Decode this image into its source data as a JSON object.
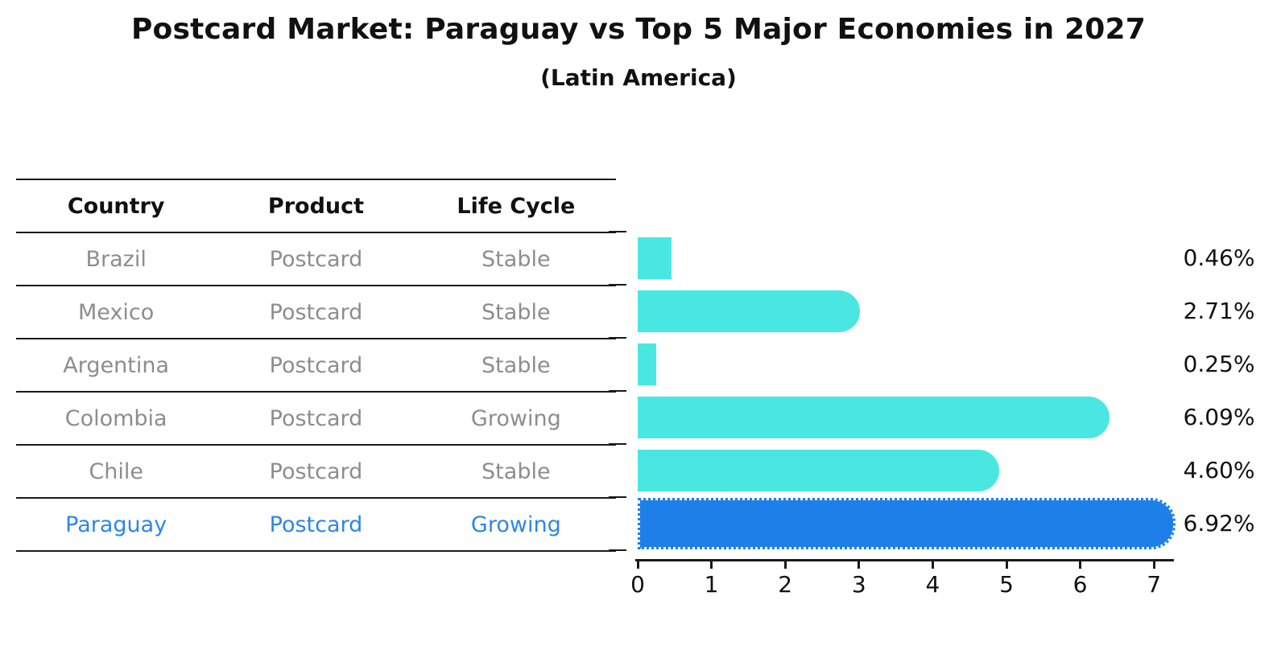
{
  "title": "Postcard Market: Paraguay vs Top 5 Major Economies in 2027",
  "subtitle": "(Latin America)",
  "table": {
    "headers": [
      "Country",
      "Product",
      "Life Cycle"
    ],
    "rows": [
      {
        "country": "Brazil",
        "product": "Postcard",
        "life_cycle": "Stable",
        "highlight": false
      },
      {
        "country": "Mexico",
        "product": "Postcard",
        "life_cycle": "Stable",
        "highlight": false
      },
      {
        "country": "Argentina",
        "product": "Postcard",
        "life_cycle": "Stable",
        "highlight": false
      },
      {
        "country": "Colombia",
        "product": "Postcard",
        "life_cycle": "Growing",
        "highlight": false
      },
      {
        "country": "Chile",
        "product": "Postcard",
        "life_cycle": "Stable",
        "highlight": false
      },
      {
        "country": "Paraguay",
        "product": "Postcard",
        "life_cycle": "Growing",
        "highlight": true
      }
    ]
  },
  "chart_data": {
    "type": "bar",
    "orientation": "horizontal",
    "title": "Postcard Market: Paraguay vs Top 5 Major Economies in 2027",
    "subtitle": "(Latin America)",
    "categories": [
      "Brazil",
      "Mexico",
      "Argentina",
      "Colombia",
      "Chile",
      "Paraguay"
    ],
    "values": [
      0.46,
      2.71,
      0.25,
      6.09,
      4.6,
      6.92
    ],
    "value_labels": [
      "0.46%",
      "2.71%",
      "0.25%",
      "6.09%",
      "4.60%",
      "6.92%"
    ],
    "x_ticks": [
      "0",
      "1",
      "2",
      "3",
      "4",
      "5",
      "6",
      "7"
    ],
    "xlim": [
      0,
      7.3
    ],
    "grid": false,
    "legend": null,
    "highlight_index": 5,
    "bar_color": "#4ae7e2",
    "highlight_color": "#1f7fe8"
  },
  "colors": {
    "bar_cyan": "#4ae7e2",
    "bar_blue": "#1f7fe8",
    "text_black": "#111111",
    "text_gray": "#8d8d8d",
    "text_blue": "#2e86e8",
    "axis": "#1a1a1a"
  }
}
